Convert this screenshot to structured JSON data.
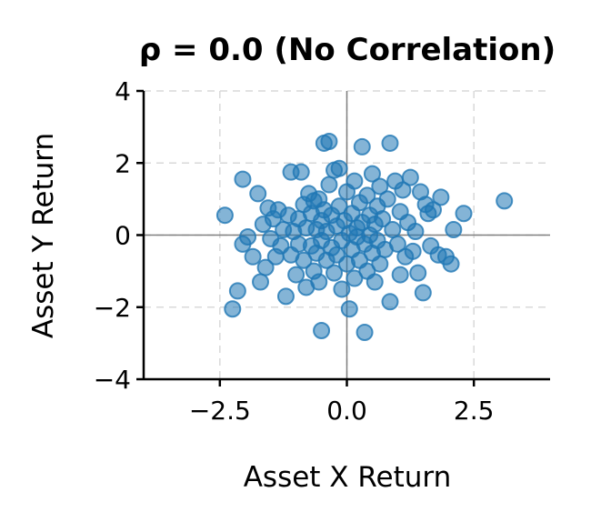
{
  "chart_data": {
    "type": "scatter",
    "title": "ρ = 0.0 (No Correlation)",
    "xlabel": "Asset X Return",
    "ylabel": "Asset Y Return",
    "xlim": [
      -4,
      4
    ],
    "ylim": [
      -4,
      4
    ],
    "xticks": [
      -2.5,
      0.0,
      2.5
    ],
    "xtick_labels": [
      "−2.5",
      "0.0",
      "2.5"
    ],
    "yticks": [
      -4,
      -2,
      0,
      2,
      4
    ],
    "ytick_labels": [
      "−4",
      "−2",
      "0",
      "2",
      "4"
    ],
    "grid": true,
    "reference_lines": {
      "x": 0,
      "y": 0
    },
    "point_color": "#1f77b4",
    "points": [
      [
        -2.4,
        0.55
      ],
      [
        -2.25,
        -2.05
      ],
      [
        -2.15,
        -1.55
      ],
      [
        -2.05,
        1.55
      ],
      [
        -2.05,
        -0.25
      ],
      [
        -1.95,
        -0.05
      ],
      [
        -1.85,
        -0.6
      ],
      [
        -1.75,
        1.15
      ],
      [
        -1.7,
        -1.3
      ],
      [
        -1.65,
        0.3
      ],
      [
        -1.6,
        -0.9
      ],
      [
        -1.55,
        0.75
      ],
      [
        -1.5,
        -0.1
      ],
      [
        -1.45,
        0.45
      ],
      [
        -1.4,
        -0.6
      ],
      [
        -1.35,
        0.7
      ],
      [
        -1.3,
        -0.3
      ],
      [
        -1.25,
        0.15
      ],
      [
        -1.2,
        -1.7
      ],
      [
        -1.15,
        0.55
      ],
      [
        -1.1,
        -0.55
      ],
      [
        -1.1,
        1.75
      ],
      [
        -1.05,
        0.1
      ],
      [
        -1.0,
        -1.1
      ],
      [
        -0.95,
        0.45
      ],
      [
        -0.95,
        -0.25
      ],
      [
        -0.9,
        1.75
      ],
      [
        -0.85,
        0.85
      ],
      [
        -0.85,
        -0.7
      ],
      [
        -0.8,
        0.2
      ],
      [
        -0.8,
        -1.45
      ],
      [
        -0.75,
        1.15
      ],
      [
        -0.7,
        -0.3
      ],
      [
        -0.7,
        0.6
      ],
      [
        -0.65,
        -1.0
      ],
      [
        -0.65,
        0.95
      ],
      [
        -0.6,
        0.15
      ],
      [
        -0.6,
        -0.5
      ],
      [
        -0.55,
        1.0
      ],
      [
        -0.55,
        -1.3
      ],
      [
        -0.5,
        0.4
      ],
      [
        -0.5,
        -0.15
      ],
      [
        -0.5,
        -2.65
      ],
      [
        -0.45,
        2.55
      ],
      [
        -0.45,
        0.7
      ],
      [
        -0.4,
        -0.7
      ],
      [
        -0.4,
        0.1
      ],
      [
        -0.35,
        2.6
      ],
      [
        -0.35,
        1.4
      ],
      [
        -0.3,
        -0.35
      ],
      [
        -0.3,
        0.55
      ],
      [
        -0.25,
        1.8
      ],
      [
        -0.25,
        -1.05
      ],
      [
        -0.2,
        0.25
      ],
      [
        -0.2,
        -0.55
      ],
      [
        -0.15,
        1.85
      ],
      [
        -0.15,
        0.8
      ],
      [
        -0.1,
        -0.15
      ],
      [
        -0.1,
        -1.5
      ],
      [
        -0.05,
        0.4
      ],
      [
        0.0,
        -0.8
      ],
      [
        0.0,
        1.2
      ],
      [
        0.05,
        0.05
      ],
      [
        0.05,
        -2.05
      ],
      [
        0.1,
        0.6
      ],
      [
        0.1,
        -0.4
      ],
      [
        0.15,
        1.5
      ],
      [
        0.15,
        -1.2
      ],
      [
        0.2,
        0.2
      ],
      [
        0.2,
        -0.05
      ],
      [
        0.25,
        0.9
      ],
      [
        0.25,
        -0.7
      ],
      [
        0.3,
        2.45
      ],
      [
        0.3,
        0.35
      ],
      [
        0.35,
        -2.7
      ],
      [
        0.35,
        -0.25
      ],
      [
        0.4,
        1.1
      ],
      [
        0.4,
        -1.0
      ],
      [
        0.45,
        0.55
      ],
      [
        0.45,
        0.0
      ],
      [
        0.5,
        -0.5
      ],
      [
        0.5,
        1.7
      ],
      [
        0.55,
        0.3
      ],
      [
        0.55,
        -1.3
      ],
      [
        0.6,
        0.8
      ],
      [
        0.6,
        -0.15
      ],
      [
        0.65,
        1.35
      ],
      [
        0.65,
        -0.8
      ],
      [
        0.7,
        0.45
      ],
      [
        0.75,
        -0.4
      ],
      [
        0.8,
        1.0
      ],
      [
        0.85,
        2.55
      ],
      [
        0.85,
        -1.85
      ],
      [
        0.9,
        0.15
      ],
      [
        0.95,
        1.5
      ],
      [
        1.0,
        -0.25
      ],
      [
        1.05,
        0.65
      ],
      [
        1.05,
        -1.1
      ],
      [
        1.1,
        1.25
      ],
      [
        1.15,
        -0.6
      ],
      [
        1.2,
        0.35
      ],
      [
        1.25,
        1.6
      ],
      [
        1.3,
        -0.45
      ],
      [
        1.35,
        0.1
      ],
      [
        1.4,
        -1.05
      ],
      [
        1.45,
        1.2
      ],
      [
        1.5,
        -1.6
      ],
      [
        1.55,
        0.85
      ],
      [
        1.6,
        0.6
      ],
      [
        1.65,
        -0.3
      ],
      [
        1.7,
        0.7
      ],
      [
        1.8,
        -0.55
      ],
      [
        1.85,
        1.05
      ],
      [
        1.95,
        -0.6
      ],
      [
        2.05,
        -0.8
      ],
      [
        2.1,
        0.15
      ],
      [
        2.3,
        0.6
      ],
      [
        3.1,
        0.95
      ]
    ]
  }
}
